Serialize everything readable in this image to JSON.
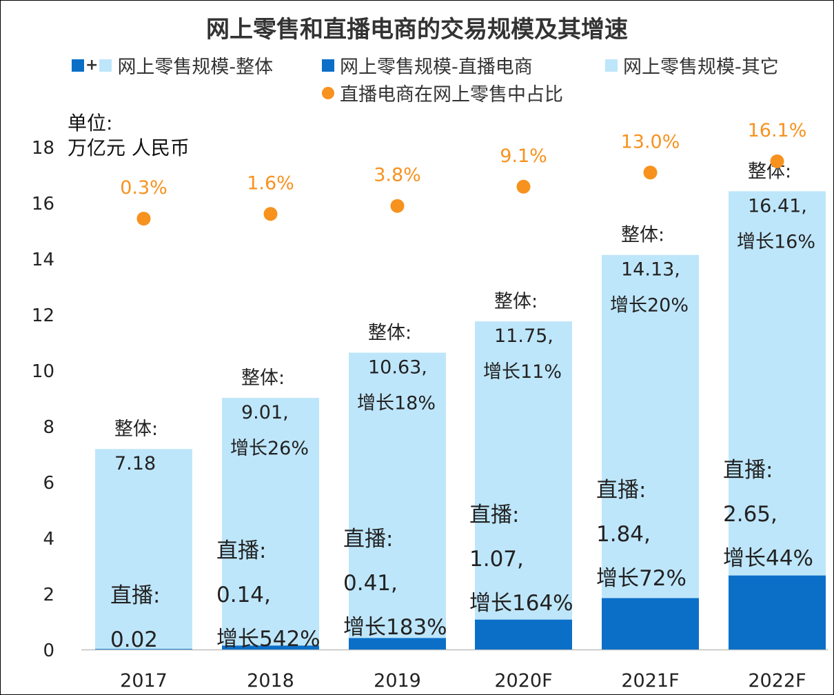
{
  "chart_data": {
    "type": "bar",
    "title": "网上零售和直播电商的交易规模及其增速",
    "unit_label": [
      "单位:",
      "万亿元 人民币"
    ],
    "categories": [
      "2017",
      "2018",
      "2019",
      "2020F",
      "2021F",
      "2022F"
    ],
    "ylim": [
      0,
      18
    ],
    "yticks": [
      "0",
      "2",
      "4",
      "6",
      "8",
      "10",
      "12",
      "14",
      "16",
      "18"
    ],
    "grid": false,
    "legend_position": "top",
    "legend": {
      "total": "网上零售规模-整体",
      "total_symbol": "+",
      "live": "网上零售规模-直播电商",
      "other": "网上零售规模-其它",
      "share": "直播电商在网上零售中占比"
    },
    "series": [
      {
        "name": "网上零售规模-整体",
        "values": [
          7.18,
          9.01,
          10.63,
          11.75,
          14.13,
          16.41
        ],
        "labels": [
          "7.18",
          "9.01,",
          "10.63,",
          "11.75,",
          "14.13,",
          "16.41,"
        ],
        "growth_labels": [
          "",
          "增长26%",
          "增长18%",
          "增长11%",
          "增长20%",
          "增长16%"
        ],
        "prefix": "整体:"
      },
      {
        "name": "网上零售规模-直播电商",
        "values": [
          0.02,
          0.14,
          0.41,
          1.07,
          1.84,
          2.65
        ],
        "labels": [
          "0.02",
          "0.14,",
          "0.41,",
          "1.07,",
          "1.84,",
          "2.65,"
        ],
        "growth_labels": [
          "",
          "增长542%",
          "增长183%",
          "增长164%",
          "增长72%",
          "增长44%"
        ],
        "prefix": "直播:"
      },
      {
        "name": "直播电商在网上零售中占比",
        "values": [
          0.3,
          1.6,
          3.8,
          9.1,
          13.0,
          16.1
        ],
        "labels": [
          "0.3%",
          "1.6%",
          "3.8%",
          "9.1%",
          "13.0%",
          "16.1%"
        ]
      }
    ],
    "colors": {
      "live": "#0b6fc8",
      "other": "#bee6fa",
      "share": "#f7921e",
      "text": "#333333"
    }
  }
}
